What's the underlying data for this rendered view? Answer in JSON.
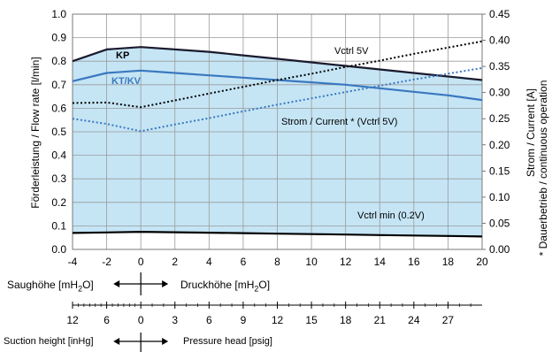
{
  "chart_data": {
    "type": "line",
    "x": [
      -4,
      -2,
      0,
      2,
      4,
      6,
      8,
      10,
      12,
      14,
      16,
      18,
      20
    ],
    "xlim": [
      -4,
      20
    ],
    "x_ticks": [
      "-4",
      "-2",
      "0",
      "2",
      "4",
      "6",
      "8",
      "10",
      "12",
      "14",
      "16",
      "18",
      "20"
    ],
    "ylim_left": [
      0,
      1.0
    ],
    "y_left_ticks": [
      "0.0",
      "0.1",
      "0.2",
      "0.3",
      "0.4",
      "0.5",
      "0.6",
      "0.7",
      "0.8",
      "0.9",
      "1.0"
    ],
    "ylabel_left": "Förderleistung / Flow rate [l/min]",
    "ylim_right": [
      0,
      0.45
    ],
    "y_right_ticks": [
      "0.00",
      "0.05",
      "0.10",
      "0.15",
      "0.20",
      "0.25",
      "0.30",
      "0.35",
      "0.40",
      "0.45"
    ],
    "ylabel_right": "Strom / Current [A]",
    "ylabel_right_note": "* Dauerbetrieb / continuous operation",
    "grid": true,
    "fill_color": "#c5e5f5",
    "series": [
      {
        "name": "KP",
        "axis": "left",
        "style": "solid",
        "color": "#1a1a2e",
        "values": [
          0.8,
          0.85,
          0.86,
          0.85,
          0.84,
          0.825,
          0.81,
          0.795,
          0.78,
          0.765,
          0.75,
          0.735,
          0.72
        ]
      },
      {
        "name": "KT/KV",
        "axis": "left",
        "style": "solid",
        "color": "#3a78bf",
        "values": [
          0.715,
          0.75,
          0.76,
          0.75,
          0.74,
          0.73,
          0.72,
          0.71,
          0.7,
          0.685,
          0.67,
          0.655,
          0.635
        ]
      },
      {
        "name": "Vctrl min (0.2V)",
        "axis": "left",
        "style": "solid",
        "color": "#000000",
        "values": [
          0.07,
          0.072,
          0.075,
          0.073,
          0.071,
          0.069,
          0.067,
          0.065,
          0.063,
          0.061,
          0.059,
          0.057,
          0.055
        ]
      },
      {
        "name": "Vctrl 5V",
        "axis": "right",
        "style": "dotted",
        "color": "#000000",
        "values": [
          0.28,
          0.281,
          0.272,
          0.285,
          0.298,
          0.311,
          0.324,
          0.336,
          0.349,
          0.361,
          0.374,
          0.386,
          0.398
        ]
      },
      {
        "name": "Strom / Current * (Vctrl 5V)",
        "axis": "right",
        "style": "dotted",
        "color": "#3a78bf",
        "values": [
          0.25,
          0.24,
          0.226,
          0.239,
          0.251,
          0.264,
          0.277,
          0.289,
          0.301,
          0.313,
          0.325,
          0.336,
          0.347
        ]
      }
    ],
    "annotations": {
      "kp": "KP",
      "ktkv": "KT/KV",
      "vctrl5": "Vctrl 5V",
      "current": "Strom / Current * (Vctrl 5V)",
      "vctrlmin": "Vctrl min (0.2V)"
    }
  },
  "scale_mh2o": {
    "left_label": "Saughöhe [mH",
    "left_sub": "2",
    "left_tail": "O]",
    "right_label": "Druckhöhe [mH",
    "right_sub": "2",
    "right_tail": "O]"
  },
  "scale_psig": {
    "ticks": [
      "12",
      "6",
      "0",
      "3",
      "6",
      "9",
      "12",
      "15",
      "18",
      "21",
      "24",
      "27"
    ],
    "left_label": "Suction height [inHg]",
    "right_label": "Pressure head [psig]"
  }
}
